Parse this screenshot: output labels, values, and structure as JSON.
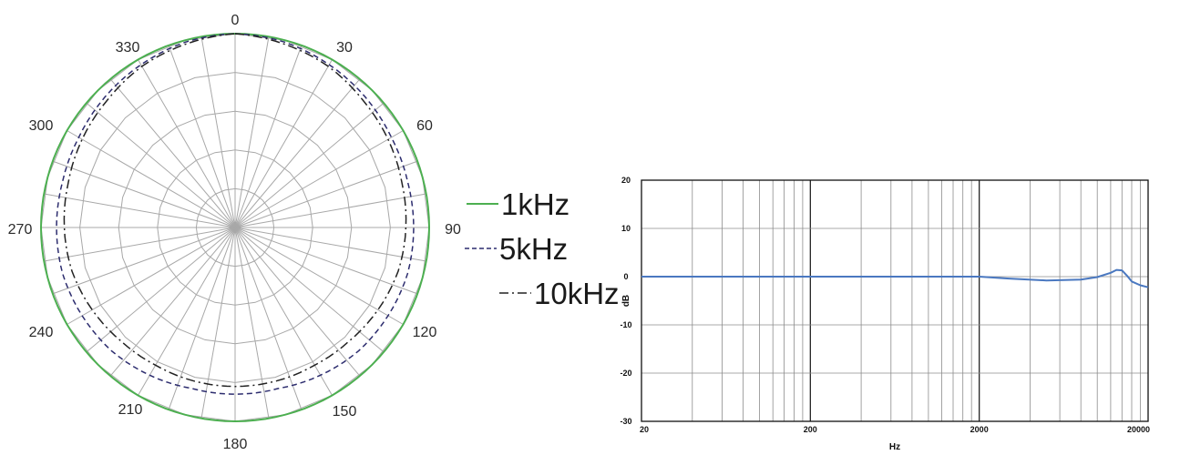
{
  "polar": {
    "angle_labels": [
      "0",
      "30",
      "60",
      "90",
      "120",
      "150",
      "180",
      "210",
      "240",
      "270",
      "300",
      "330"
    ],
    "legend": [
      "1kHz",
      "5kHz",
      "10kHz"
    ]
  },
  "frequency": {
    "xlabel": "Hz",
    "ylabel": "dB",
    "x_ticks": [
      "20",
      "200",
      "2000",
      "20000"
    ],
    "y_ticks": [
      "20",
      "10",
      "0",
      "-10",
      "-20",
      "-30"
    ]
  },
  "colors": {
    "grid": "#a8a8a8",
    "series_1khz": "#4caf50",
    "series_5khz": "#2c2c6e",
    "series_10khz": "#222222",
    "fr_line": "#4a78c0"
  },
  "chart_data": [
    {
      "type": "polar",
      "title": "",
      "angle_unit": "degrees",
      "angles": [
        0,
        15,
        30,
        45,
        60,
        75,
        90,
        105,
        120,
        135,
        150,
        165,
        180,
        195,
        210,
        225,
        240,
        255,
        270,
        285,
        300,
        315,
        330,
        345
      ],
      "series": [
        {
          "name": "1kHz",
          "style": "solid",
          "values": [
            1.0,
            1.0,
            1.0,
            1.0,
            1.0,
            1.0,
            1.0,
            1.0,
            1.0,
            1.0,
            1.0,
            1.0,
            1.0,
            1.0,
            1.0,
            1.0,
            1.0,
            1.0,
            1.0,
            1.0,
            1.0,
            1.0,
            1.0,
            1.0
          ]
        },
        {
          "name": "5kHz",
          "style": "dashed",
          "values": [
            1.0,
            0.99,
            0.97,
            0.95,
            0.93,
            0.92,
            0.92,
            0.92,
            0.91,
            0.9,
            0.88,
            0.86,
            0.86,
            0.86,
            0.88,
            0.9,
            0.91,
            0.92,
            0.92,
            0.92,
            0.93,
            0.95,
            0.97,
            0.99
          ]
        },
        {
          "name": "10kHz",
          "style": "dash-dot",
          "values": [
            1.0,
            0.98,
            0.96,
            0.93,
            0.91,
            0.89,
            0.88,
            0.87,
            0.85,
            0.83,
            0.82,
            0.82,
            0.82,
            0.82,
            0.82,
            0.83,
            0.85,
            0.87,
            0.88,
            0.89,
            0.91,
            0.93,
            0.96,
            0.98
          ]
        }
      ]
    },
    {
      "type": "line",
      "title": "",
      "xlabel": "Hz",
      "ylabel": "dB",
      "xscale": "log",
      "xlim": [
        20,
        20000
      ],
      "ylim": [
        -30,
        20
      ],
      "grid": true,
      "series": [
        {
          "name": "",
          "x": [
            20,
            100,
            500,
            1000,
            2000,
            3000,
            5000,
            8000,
            10000,
            12000,
            13000,
            14000,
            15000,
            16000,
            18000,
            20000
          ],
          "y": [
            0,
            0,
            0,
            0,
            0,
            -0.4,
            -0.8,
            -0.6,
            -0.1,
            0.8,
            1.4,
            1.3,
            0.2,
            -1.0,
            -1.8,
            -2.2
          ]
        }
      ]
    }
  ]
}
